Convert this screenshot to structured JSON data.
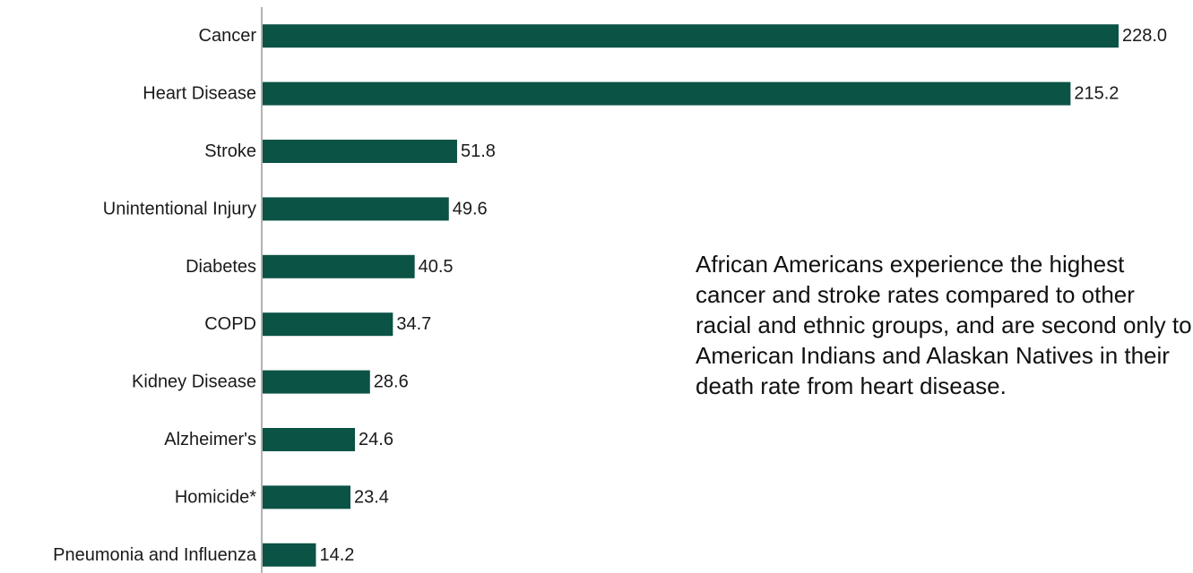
{
  "chart_data": {
    "type": "bar",
    "orientation": "horizontal",
    "categories": [
      "Cancer",
      "Heart Disease",
      "Stroke",
      "Unintentional Injury",
      "Diabetes",
      "COPD",
      "Kidney Disease",
      "Alzheimer's",
      "Homicide*",
      "Pneumonia and Influenza"
    ],
    "values": [
      228.0,
      215.2,
      51.8,
      49.6,
      40.5,
      34.7,
      28.6,
      24.6,
      23.4,
      14.2
    ],
    "value_labels": [
      "228.0",
      "215.2",
      "51.8",
      "49.6",
      "40.5",
      "34.7",
      "28.6",
      "24.6",
      "23.4",
      "14.2"
    ],
    "xlim": [
      0,
      235
    ],
    "grid": false,
    "bar_color": "#0b5345",
    "axis_color": "#9a9a9a",
    "annotation": "African Americans experience the highest cancer and stroke rates compared to other racial and ethnic groups, and are second only to American Indians and Alaskan Natives in their death rate from heart disease."
  }
}
